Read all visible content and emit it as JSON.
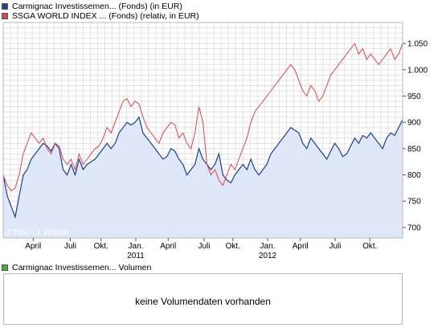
{
  "legend": {
    "series1_label": "Carmignac Investissemen... (Fonds) (in EUR)",
    "series2_label": "SSGA WORLD INDEX ... (Fonds) (relativ, in EUR)",
    "volume_label": "Carmignac Investissemen... Volumen"
  },
  "colors": {
    "series1": "#1f3f8f",
    "series1_fill": "#dbe6f8",
    "series2": "#e0474c",
    "volume": "#3fb23f",
    "grid": "#e2e2e2",
    "frame": "#b8b8b8"
  },
  "tick_note": "1 Tick = 1 Woche",
  "volume_message": "keine Volumendaten vorhanden",
  "chart_data": {
    "type": "line",
    "grid": true,
    "legend_position": "top-left",
    "y_axis_side": "right",
    "ylim": [
      680,
      1090
    ],
    "yticks": [
      700,
      750,
      800,
      850,
      900,
      950,
      1000,
      1050
    ],
    "ytick_labels": [
      "700",
      "750",
      "800",
      "850",
      "900",
      "950",
      "1.000",
      "1.050"
    ],
    "xlim": [
      0,
      100
    ],
    "month_ticks": [
      {
        "label": "April",
        "x": 7.5
      },
      {
        "label": "Juli",
        "x": 16.8
      },
      {
        "label": "Okt.",
        "x": 24.5
      },
      {
        "label": "Jan.",
        "sublabel": "2011",
        "x": 33.2
      },
      {
        "label": "April",
        "x": 41.3
      },
      {
        "label": "Juli",
        "x": 50.3
      },
      {
        "label": "Okt.",
        "x": 57.5
      },
      {
        "label": "Jan.",
        "sublabel": "2012",
        "x": 66.2
      },
      {
        "label": "April",
        "x": 74.4
      },
      {
        "label": "Juli",
        "x": 83.1
      },
      {
        "label": "Okt.",
        "x": 91.8
      }
    ],
    "series": [
      {
        "name": "Carmignac Investissemen... (Fonds) (in EUR)",
        "x": [
          0,
          1,
          2,
          3,
          4,
          5,
          6,
          7,
          8,
          9,
          10,
          11,
          12,
          13,
          14,
          15,
          16,
          17,
          18,
          19,
          20,
          21,
          22,
          23,
          24,
          25,
          26,
          27,
          28,
          29,
          30,
          31,
          32,
          33,
          34,
          35,
          36,
          37,
          38,
          39,
          40,
          41,
          42,
          43,
          44,
          45,
          46,
          47,
          48,
          49,
          50,
          51,
          52,
          53,
          54,
          55,
          56,
          57,
          58,
          59,
          60,
          61,
          62,
          63,
          64,
          65,
          66,
          67,
          68,
          69,
          70,
          71,
          72,
          73,
          74,
          75,
          76,
          77,
          78,
          79,
          80,
          81,
          82,
          83,
          84,
          85,
          86,
          87,
          88,
          89,
          90,
          91,
          92,
          93,
          94,
          95,
          96,
          97,
          98,
          99,
          100
        ],
        "values": [
          800,
          760,
          740,
          720,
          760,
          800,
          810,
          830,
          840,
          850,
          860,
          855,
          845,
          860,
          850,
          810,
          800,
          820,
          800,
          830,
          810,
          820,
          825,
          830,
          840,
          850,
          860,
          850,
          860,
          880,
          890,
          900,
          895,
          900,
          910,
          880,
          870,
          860,
          850,
          840,
          830,
          835,
          850,
          845,
          830,
          820,
          800,
          810,
          820,
          850,
          830,
          820,
          810,
          820,
          840,
          800,
          790,
          785,
          800,
          810,
          820,
          810,
          830,
          810,
          800,
          810,
          820,
          840,
          850,
          860,
          870,
          880,
          890,
          885,
          880,
          860,
          850,
          870,
          860,
          850,
          840,
          830,
          845,
          860,
          850,
          835,
          840,
          855,
          870,
          860,
          875,
          870,
          880,
          870,
          860,
          850,
          870,
          880,
          875,
          890,
          905
        ]
      },
      {
        "name": "SSGA WORLD INDEX ... (Fonds) (relativ, in EUR)",
        "x": [
          0,
          1,
          2,
          3,
          4,
          5,
          6,
          7,
          8,
          9,
          10,
          11,
          12,
          13,
          14,
          15,
          16,
          17,
          18,
          19,
          20,
          21,
          22,
          23,
          24,
          25,
          26,
          27,
          28,
          29,
          30,
          31,
          32,
          33,
          34,
          35,
          36,
          37,
          38,
          39,
          40,
          41,
          42,
          43,
          44,
          45,
          46,
          47,
          48,
          49,
          50,
          51,
          52,
          53,
          54,
          55,
          56,
          57,
          58,
          59,
          60,
          61,
          62,
          63,
          64,
          65,
          66,
          67,
          68,
          69,
          70,
          71,
          72,
          73,
          74,
          75,
          76,
          77,
          78,
          79,
          80,
          81,
          82,
          83,
          84,
          85,
          86,
          87,
          88,
          89,
          90,
          91,
          92,
          93,
          94,
          95,
          96,
          97,
          98,
          99,
          100
        ],
        "values": [
          800,
          780,
          770,
          775,
          800,
          840,
          860,
          880,
          870,
          860,
          870,
          850,
          840,
          860,
          855,
          830,
          820,
          830,
          810,
          840,
          820,
          830,
          840,
          850,
          855,
          870,
          890,
          880,
          900,
          920,
          940,
          945,
          930,
          940,
          935,
          910,
          890,
          880,
          870,
          860,
          880,
          890,
          900,
          895,
          870,
          880,
          860,
          850,
          880,
          930,
          900,
          820,
          800,
          810,
          790,
          780,
          800,
          820,
          810,
          830,
          850,
          870,
          900,
          920,
          930,
          940,
          950,
          960,
          970,
          980,
          990,
          1000,
          1010,
          1000,
          980,
          960,
          950,
          970,
          960,
          940,
          950,
          970,
          990,
          1000,
          1010,
          1020,
          1030,
          1040,
          1050,
          1030,
          1040,
          1020,
          1030,
          1020,
          1010,
          1020,
          1030,
          1040,
          1020,
          1030,
          1050
        ]
      }
    ]
  }
}
